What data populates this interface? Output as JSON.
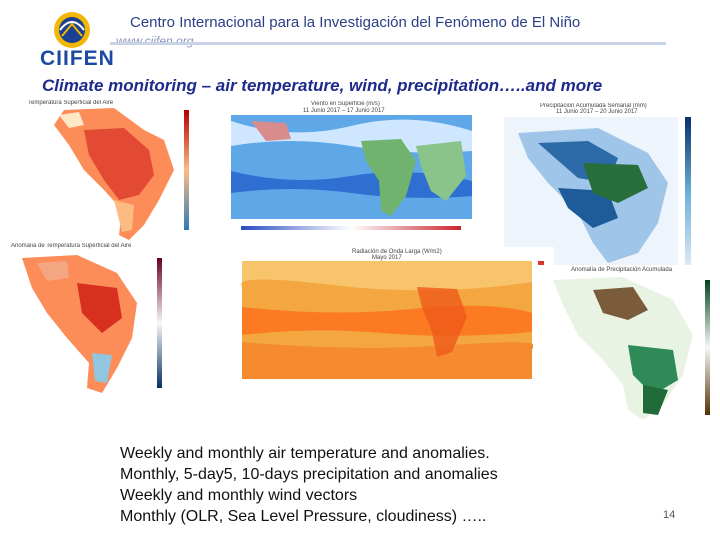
{
  "header": {
    "organization": "Centro Internacional para la Investigación del Fenómeno de El Niño",
    "url": "www.ciifen.org",
    "logo_text": "CIIFEN"
  },
  "slide": {
    "title": "Climate monitoring – air temperature, wind, precipitation…..and more",
    "bullets": [
      "Weekly and monthly air temperature and anomalies.",
      "Monthly, 5-day5, 10-days precipitation and anomalies",
      "Weekly and monthly wind vectors",
      "Monthly (OLR, Sea Level Pressure, cloudiness) ….."
    ],
    "page_number": "14"
  },
  "maps": {
    "temp_top_caption": "Temperatura Superficial del Aire",
    "wind_caption": "Viento en Superficie (m/s)",
    "wind_date": "11 Junio 2017 – 17 Junio 2017",
    "precip_caption": "Precipitación Acumulada Semanal (mm)",
    "precip_date": "11 Junio 2017 – 20 Junio 2017",
    "temp_bottom_caption": "Anomalía de Temperatura Superficial del Aire",
    "olr_caption": "Radiación de Onda Larga (W/m2)",
    "olr_date": "Mayo 2017",
    "precip_anom_caption": "Anomalía de Precipitación Acumulada",
    "colors": {
      "hot": "#d7301f",
      "warm": "#fc8d59",
      "cool": "#4575b4",
      "ocean_blue": "#3a7bd5",
      "green": "#2e8b57"
    }
  }
}
